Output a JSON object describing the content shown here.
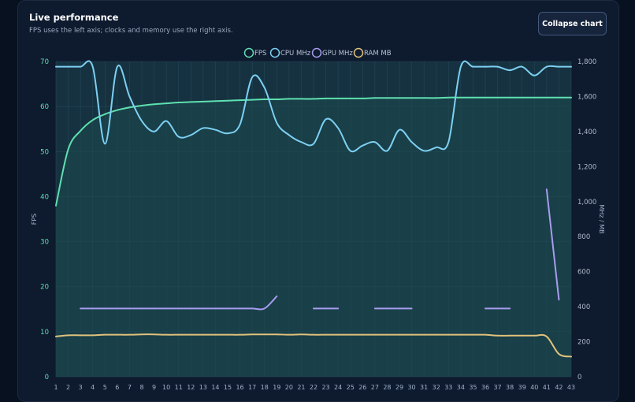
{
  "panel": {
    "title": "Live performance",
    "subtitle": "FPS uses the left axis; clocks and memory use the right axis.",
    "collapse_label": "Collapse chart"
  },
  "colors": {
    "fps": "#5ee0b0",
    "cpu": "#7dd0f2",
    "gpu": "#a89cf0",
    "ram": "#e2c27d",
    "plot_bg": "#163240",
    "grid": "#24475a"
  },
  "chart_data": {
    "type": "line",
    "x": [
      1,
      2,
      3,
      4,
      5,
      6,
      7,
      8,
      9,
      10,
      11,
      12,
      13,
      14,
      15,
      16,
      17,
      18,
      19,
      20,
      21,
      22,
      23,
      24,
      25,
      26,
      27,
      28,
      29,
      30,
      31,
      32,
      33,
      34,
      35,
      36,
      37,
      38,
      39,
      40,
      41,
      42,
      43
    ],
    "y_left": {
      "label": "FPS",
      "ticks": [
        0,
        10,
        20,
        30,
        40,
        50,
        60,
        70
      ],
      "ylim": [
        0,
        70
      ]
    },
    "y_right": {
      "label": "MHz / MB",
      "ticks": [
        "0",
        "200",
        "400",
        "600",
        "800",
        "1,000",
        "1,200",
        "1,400",
        "1,600",
        "1,800"
      ],
      "ylim": [
        0,
        1800
      ]
    },
    "grid": true,
    "legend_position": "top-center",
    "series": [
      {
        "name": "FPS",
        "axis": "left",
        "color_key": "fps",
        "values": [
          38,
          50.5,
          54.6,
          57,
          58.3,
          59.2,
          59.8,
          60.2,
          60.5,
          60.7,
          60.9,
          61,
          61.1,
          61.2,
          61.3,
          61.4,
          61.5,
          61.6,
          61.6,
          61.7,
          61.7,
          61.7,
          61.8,
          61.8,
          61.8,
          61.8,
          61.9,
          61.9,
          61.9,
          61.9,
          61.9,
          61.9,
          62,
          62,
          62,
          62,
          62,
          62,
          62,
          62,
          62,
          62,
          62
        ]
      },
      {
        "name": "CPU MHz",
        "axis": "right",
        "color_key": "cpu",
        "values": [
          1770,
          1770,
          1770,
          1770,
          1330,
          1770,
          1600,
          1460,
          1400,
          1460,
          1370,
          1380,
          1420,
          1410,
          1390,
          1440,
          1710,
          1650,
          1450,
          1380,
          1340,
          1330,
          1470,
          1420,
          1290,
          1320,
          1340,
          1290,
          1410,
          1340,
          1290,
          1310,
          1340,
          1770,
          1770,
          1770,
          1770,
          1750,
          1770,
          1720,
          1770,
          1770,
          1770
        ]
      },
      {
        "name": "GPU MHz",
        "axis": "right",
        "color_key": "gpu",
        "values": [
          null,
          null,
          390,
          390,
          390,
          390,
          390,
          390,
          390,
          390,
          390,
          390,
          390,
          390,
          390,
          390,
          390,
          390,
          460,
          null,
          null,
          390,
          390,
          390,
          null,
          null,
          390,
          390,
          390,
          390,
          null,
          null,
          null,
          null,
          null,
          390,
          390,
          390,
          null,
          null,
          1070,
          440,
          null
        ]
      },
      {
        "name": "RAM MB",
        "axis": "right",
        "color_key": "ram",
        "values": [
          230,
          237,
          237,
          237,
          240,
          240,
          240,
          242,
          242,
          240,
          240,
          240,
          240,
          240,
          240,
          240,
          242,
          242,
          242,
          240,
          242,
          240,
          240,
          240,
          240,
          240,
          240,
          240,
          240,
          240,
          240,
          240,
          240,
          240,
          240,
          240,
          235,
          235,
          235,
          235,
          230,
          130,
          115
        ]
      }
    ]
  }
}
